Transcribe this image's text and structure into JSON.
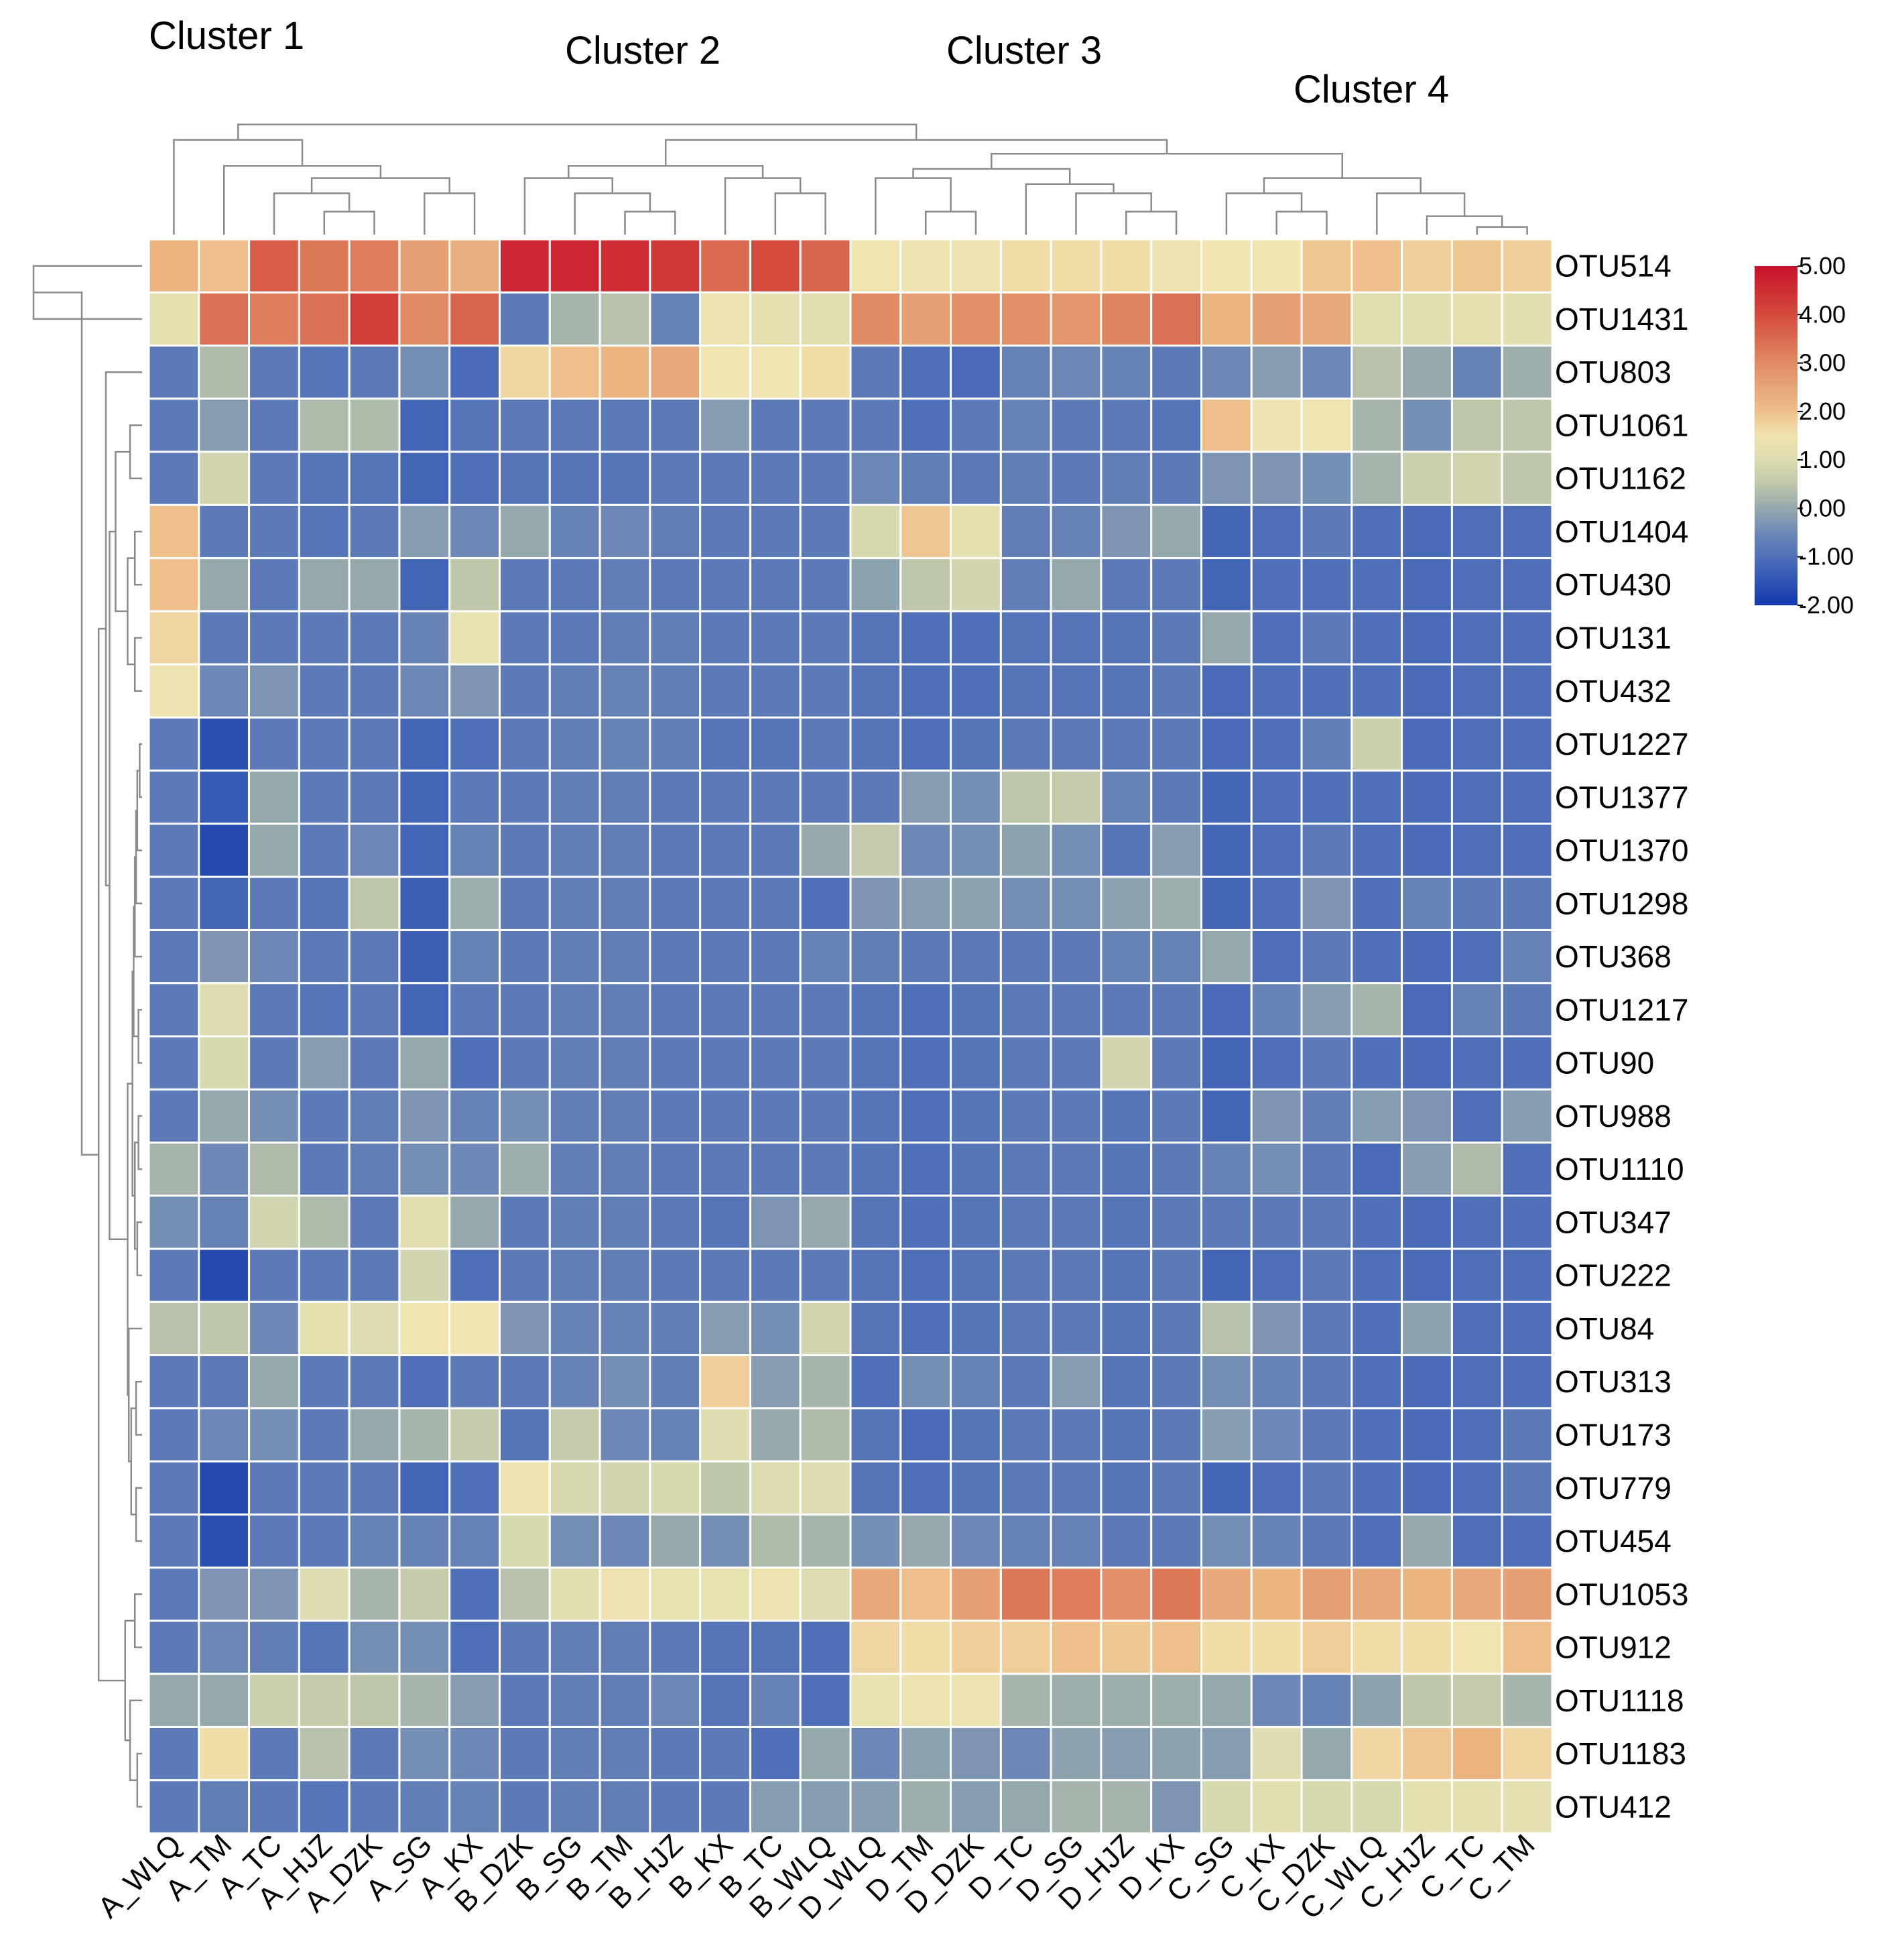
{
  "chart_data": {
    "type": "heatmap",
    "columns": [
      "A_WLQ",
      "A_TM",
      "A_TC",
      "A_HJZ",
      "A_DZK",
      "A_SG",
      "A_KX",
      "B_DZK",
      "B_SG",
      "B_TM",
      "B_HJZ",
      "B_KX",
      "B_TC",
      "B_WLQ",
      "D_WLQ",
      "D_TM",
      "D_DZK",
      "D_TC",
      "D_SG",
      "D_HJZ",
      "D_KX",
      "C_SG",
      "C_KX",
      "C_DZK",
      "C_WLQ",
      "C_HJZ",
      "C_TC",
      "C_TM"
    ],
    "rows": [
      "OTU514",
      "OTU1431",
      "OTU803",
      "OTU1061",
      "OTU1162",
      "OTU1404",
      "OTU430",
      "OTU131",
      "OTU432",
      "OTU1227",
      "OTU1377",
      "OTU1370",
      "OTU1298",
      "OTU368",
      "OTU1217",
      "OTU90",
      "OTU988",
      "OTU1110",
      "OTU347",
      "OTU222",
      "OTU84",
      "OTU313",
      "OTU173",
      "OTU779",
      "OTU454",
      "OTU1053",
      "OTU912",
      "OTU1118",
      "OTU1183",
      "OTU412"
    ],
    "values": [
      [
        2.2,
        2.0,
        3.7,
        3.3,
        3.2,
        2.6,
        2.3,
        4.6,
        4.6,
        4.5,
        4.3,
        3.5,
        4.0,
        3.6,
        1.5,
        1.4,
        1.4,
        1.6,
        1.6,
        1.6,
        1.4,
        1.5,
        1.5,
        1.9,
        2.0,
        1.8,
        1.9,
        1.8
      ],
      [
        1.2,
        3.4,
        3.2,
        3.4,
        4.2,
        3.0,
        3.6,
        -0.8,
        0.2,
        0.4,
        -0.6,
        1.4,
        1.2,
        1.1,
        3.0,
        2.6,
        2.9,
        2.9,
        2.8,
        3.1,
        3.4,
        2.2,
        2.6,
        2.4,
        1.1,
        1.1,
        1.2,
        1.1
      ],
      [
        -0.8,
        0.3,
        -0.8,
        -0.9,
        -0.8,
        -0.4,
        -1.1,
        1.7,
        2.0,
        2.2,
        2.4,
        1.5,
        1.5,
        1.6,
        -0.8,
        -1.0,
        -1.1,
        -0.6,
        -0.5,
        -0.6,
        -0.8,
        -0.5,
        -0.2,
        -0.5,
        0.4,
        0.0,
        -0.6,
        0.1
      ],
      [
        -0.8,
        -0.2,
        -0.8,
        0.3,
        0.3,
        -1.2,
        -0.9,
        -0.8,
        -0.8,
        -0.8,
        -0.8,
        -0.2,
        -0.8,
        -0.8,
        -0.8,
        -1.0,
        -0.8,
        -0.6,
        -0.8,
        -0.8,
        -0.9,
        2.0,
        1.4,
        1.5,
        0.2,
        -0.4,
        0.5,
        0.5
      ],
      [
        -0.8,
        0.8,
        -0.8,
        -0.9,
        -0.9,
        -1.2,
        -1.0,
        -0.9,
        -0.9,
        -0.9,
        -0.8,
        -0.8,
        -0.8,
        -0.8,
        -0.5,
        -0.7,
        -0.8,
        -0.7,
        -0.8,
        -0.7,
        -0.8,
        -0.3,
        -0.3,
        -0.4,
        0.2,
        0.7,
        0.8,
        0.5
      ],
      [
        2.0,
        -0.8,
        -0.8,
        -0.9,
        -0.8,
        -0.2,
        -0.5,
        0.0,
        -0.6,
        -0.5,
        -0.7,
        -0.8,
        -0.8,
        -0.8,
        0.9,
        1.9,
        1.2,
        -0.7,
        -0.6,
        -0.3,
        0.0,
        -1.2,
        -1.0,
        -0.8,
        -1.0,
        -1.1,
        -1.0,
        -1.0
      ],
      [
        2.0,
        0.0,
        -0.8,
        0.0,
        0.0,
        -1.2,
        0.5,
        -0.8,
        -0.8,
        -0.7,
        -0.8,
        -0.8,
        -0.8,
        -0.8,
        -0.1,
        0.5,
        0.8,
        -0.7,
        0.0,
        -0.8,
        -0.8,
        -1.2,
        -1.0,
        -1.0,
        -1.0,
        -1.1,
        -1.0,
        -1.0
      ],
      [
        1.7,
        -0.8,
        -0.8,
        -0.8,
        -0.8,
        -0.6,
        1.3,
        -0.8,
        -0.8,
        -0.7,
        -0.7,
        -0.8,
        -0.8,
        -0.8,
        -0.9,
        -1.0,
        -1.0,
        -0.9,
        -0.9,
        -0.9,
        -0.8,
        0.0,
        -1.0,
        -0.8,
        -1.0,
        -1.1,
        -1.0,
        -1.0
      ],
      [
        1.4,
        -0.5,
        -0.3,
        -0.8,
        -0.8,
        -0.5,
        -0.3,
        -0.8,
        -0.7,
        -0.6,
        -0.7,
        -0.8,
        -0.8,
        -0.8,
        -0.9,
        -1.0,
        -1.0,
        -0.9,
        -0.9,
        -0.9,
        -0.8,
        -1.1,
        -1.0,
        -1.0,
        -1.0,
        -1.1,
        -1.0,
        -1.0
      ],
      [
        -0.8,
        -1.6,
        -0.8,
        -0.8,
        -0.8,
        -1.2,
        -1.0,
        -0.8,
        -0.7,
        -0.6,
        -0.7,
        -0.9,
        -0.9,
        -0.8,
        -0.9,
        -1.0,
        -0.9,
        -0.8,
        -0.8,
        -0.8,
        -0.8,
        -1.1,
        -1.0,
        -0.7,
        0.7,
        -1.1,
        -1.0,
        -1.0
      ],
      [
        -0.8,
        -1.4,
        0.0,
        -0.8,
        -0.8,
        -1.2,
        -0.8,
        -0.8,
        -0.7,
        -0.7,
        -0.8,
        -0.8,
        -0.8,
        -0.8,
        -0.8,
        -0.2,
        -0.4,
        0.5,
        0.6,
        -0.6,
        -0.8,
        -1.2,
        -1.0,
        -1.0,
        -1.0,
        -1.1,
        -1.0,
        -1.0
      ],
      [
        -0.8,
        -1.7,
        0.0,
        -0.8,
        -0.5,
        -1.2,
        -0.6,
        -0.8,
        -0.7,
        -0.7,
        -0.8,
        -0.8,
        -0.8,
        0.0,
        0.6,
        -0.5,
        -0.4,
        -0.1,
        -0.4,
        -0.9,
        -0.2,
        -1.2,
        -1.0,
        -0.8,
        -1.0,
        -1.1,
        -1.0,
        -1.0
      ],
      [
        -0.8,
        -1.2,
        -0.8,
        -0.9,
        0.5,
        -1.3,
        0.1,
        -0.8,
        -0.7,
        -0.7,
        -0.8,
        -0.8,
        -0.8,
        -1.0,
        -0.3,
        -0.2,
        -0.1,
        -0.4,
        -0.4,
        -0.1,
        0.1,
        -1.2,
        -1.0,
        -0.3,
        -1.0,
        -0.6,
        -0.8,
        -0.8
      ],
      [
        -0.8,
        -0.3,
        -0.5,
        -0.8,
        -0.8,
        -1.3,
        -0.6,
        -0.8,
        -0.7,
        -0.7,
        -0.8,
        -0.8,
        -0.8,
        -0.6,
        -0.7,
        -0.8,
        -0.8,
        -0.8,
        -0.8,
        -0.6,
        -0.6,
        0.0,
        -1.0,
        -0.8,
        -1.0,
        -1.1,
        -1.0,
        -0.6
      ],
      [
        -0.8,
        1.0,
        -0.8,
        -0.9,
        -0.8,
        -1.2,
        -0.8,
        -0.8,
        -0.7,
        -0.7,
        -0.8,
        -0.8,
        -0.8,
        -0.8,
        -0.9,
        -1.0,
        -0.9,
        -0.8,
        -0.8,
        -0.8,
        -0.8,
        -1.1,
        -0.6,
        -0.2,
        0.2,
        -1.1,
        -0.6,
        -0.8
      ],
      [
        -0.8,
        0.9,
        -0.8,
        -0.2,
        -0.8,
        0.0,
        -1.0,
        -0.8,
        -0.7,
        -0.7,
        -0.8,
        -0.8,
        -0.8,
        -0.8,
        -0.9,
        -1.0,
        -0.9,
        -0.8,
        -0.8,
        0.8,
        -0.8,
        -1.2,
        -1.0,
        -0.8,
        -1.0,
        -1.1,
        -1.0,
        -1.0
      ],
      [
        -0.8,
        0.0,
        -0.4,
        -0.8,
        -0.7,
        -0.3,
        -0.6,
        -0.4,
        -0.7,
        -0.7,
        -0.8,
        -0.8,
        -0.8,
        -0.8,
        -0.9,
        -1.0,
        -0.9,
        -0.8,
        -0.8,
        -0.9,
        -0.8,
        -1.2,
        -0.3,
        -0.7,
        -0.2,
        -0.3,
        -1.0,
        -0.2
      ],
      [
        0.2,
        -0.5,
        0.3,
        -0.8,
        -0.7,
        -0.4,
        -0.5,
        0.1,
        -0.7,
        -0.7,
        -0.8,
        -0.8,
        -0.8,
        -0.8,
        -0.9,
        -1.0,
        -0.9,
        -0.8,
        -0.8,
        -0.9,
        -0.8,
        -0.6,
        -0.4,
        -0.8,
        -1.1,
        -0.2,
        0.3,
        -1.0
      ],
      [
        -0.4,
        -0.6,
        0.8,
        0.3,
        -0.8,
        1.1,
        0.0,
        -0.8,
        -0.7,
        -0.7,
        -0.8,
        -0.9,
        -0.3,
        0.0,
        -0.9,
        -1.0,
        -0.9,
        -0.8,
        -0.8,
        -0.9,
        -0.8,
        -0.8,
        -0.8,
        -0.8,
        -1.0,
        -1.1,
        -1.0,
        -1.0
      ],
      [
        -0.8,
        -1.7,
        -0.8,
        -0.8,
        -0.8,
        0.8,
        -1.0,
        -0.8,
        -0.7,
        -0.7,
        -0.8,
        -0.8,
        -0.8,
        -0.8,
        -0.9,
        -1.0,
        -0.9,
        -0.8,
        -0.8,
        -0.9,
        -0.8,
        -1.2,
        -1.0,
        -0.8,
        -1.0,
        -1.1,
        -1.0,
        -1.0
      ],
      [
        0.4,
        0.5,
        -0.5,
        1.2,
        1.0,
        1.5,
        1.5,
        -0.3,
        -0.6,
        -0.6,
        -0.7,
        -0.2,
        -0.4,
        0.8,
        -0.9,
        -1.0,
        -0.9,
        -0.8,
        -0.8,
        -0.9,
        -0.8,
        0.4,
        -0.3,
        -0.8,
        -1.0,
        -0.1,
        -1.0,
        -1.0
      ],
      [
        -0.8,
        -0.8,
        0.0,
        -0.8,
        -0.8,
        -1.0,
        -0.8,
        -0.8,
        -0.6,
        -0.4,
        -0.7,
        1.8,
        -0.2,
        0.2,
        -1.0,
        -0.4,
        -0.6,
        -0.8,
        -0.2,
        -0.9,
        -0.8,
        -0.4,
        -0.6,
        -0.8,
        -1.0,
        -1.1,
        -1.0,
        -1.0
      ],
      [
        -0.8,
        -0.5,
        -0.4,
        -0.8,
        0.0,
        0.2,
        0.6,
        -0.9,
        0.6,
        -0.5,
        -0.6,
        1.0,
        0.0,
        0.3,
        -0.9,
        -1.1,
        -0.9,
        -0.8,
        -0.8,
        -0.9,
        -0.8,
        -0.2,
        -0.5,
        -0.8,
        -1.0,
        -1.1,
        -1.0,
        -0.8
      ],
      [
        -0.8,
        -1.7,
        -0.8,
        -0.8,
        -0.8,
        -1.2,
        -1.0,
        1.4,
        0.9,
        0.8,
        0.9,
        0.5,
        1.0,
        1.0,
        -0.9,
        -1.0,
        -0.9,
        -0.8,
        -0.8,
        -0.9,
        -0.8,
        -1.2,
        -1.0,
        -0.8,
        -1.0,
        -1.1,
        -1.0,
        -0.8
      ],
      [
        -0.8,
        -1.6,
        -0.8,
        -0.8,
        -0.6,
        -0.6,
        -0.6,
        0.9,
        -0.4,
        -0.5,
        0.0,
        -0.4,
        0.3,
        0.2,
        -0.4,
        0.0,
        -0.5,
        -0.6,
        -0.6,
        -0.8,
        -0.8,
        -0.4,
        -0.6,
        -0.8,
        -1.0,
        0.0,
        -1.0,
        -1.0
      ],
      [
        -0.8,
        -0.3,
        -0.3,
        1.0,
        0.2,
        0.6,
        -1.0,
        0.4,
        1.1,
        1.4,
        1.3,
        1.3,
        1.4,
        1.0,
        2.4,
        2.0,
        2.6,
        3.3,
        3.2,
        2.9,
        3.3,
        2.4,
        2.2,
        2.6,
        2.4,
        2.2,
        2.4,
        2.6
      ],
      [
        -0.8,
        -0.5,
        -0.7,
        -0.9,
        -0.4,
        -0.4,
        -1.0,
        -0.8,
        -0.7,
        -0.7,
        -0.8,
        -0.9,
        -0.9,
        -1.0,
        1.7,
        1.6,
        1.8,
        1.8,
        2.0,
        1.9,
        2.0,
        1.6,
        1.6,
        1.8,
        1.6,
        1.6,
        1.5,
        2.0
      ],
      [
        0.0,
        0.0,
        0.7,
        0.6,
        0.5,
        0.2,
        -0.2,
        -0.8,
        -0.7,
        -0.7,
        -0.5,
        -0.9,
        -0.6,
        -1.0,
        1.3,
        1.4,
        1.4,
        0.2,
        0.1,
        0.1,
        0.1,
        0.0,
        -0.5,
        -0.6,
        -0.1,
        0.5,
        0.6,
        0.2
      ],
      [
        -0.8,
        1.6,
        -0.8,
        0.4,
        -0.8,
        -0.4,
        -0.5,
        -0.8,
        -0.7,
        -0.7,
        -0.8,
        -0.8,
        -1.0,
        0.0,
        -0.5,
        -0.1,
        -0.3,
        -0.5,
        -0.1,
        -0.2,
        -0.1,
        -0.2,
        1.0,
        0.0,
        1.7,
        1.9,
        2.2,
        1.7
      ],
      [
        -0.8,
        -0.7,
        -0.8,
        -0.9,
        -0.8,
        -0.7,
        -0.6,
        -0.8,
        -0.7,
        -0.7,
        -0.8,
        -0.8,
        -0.2,
        -0.2,
        -0.2,
        0.1,
        -0.2,
        0.0,
        0.2,
        0.2,
        -0.3,
        0.9,
        1.1,
        0.9,
        0.9,
        1.2,
        1.2,
        1.2
      ]
    ],
    "cluster_labels": [
      "Cluster 1",
      "Cluster 2",
      "Cluster 3",
      "Cluster 4"
    ],
    "colorbar": {
      "range": [
        -2,
        5
      ],
      "ticks": [
        "5.00",
        "4.00",
        "3.00",
        "2.00",
        "1.00",
        "0.00",
        "-1.00",
        "-2.00"
      ],
      "tick_values": [
        5,
        4,
        3,
        2,
        1,
        0,
        -1,
        -2
      ],
      "stops": [
        {
          "v": -2.0,
          "c": "#1239ad"
        },
        {
          "v": -1.0,
          "c": "#4f70b8"
        },
        {
          "v": -0.5,
          "c": "#6d88b6"
        },
        {
          "v": 0.0,
          "c": "#95a9ad"
        },
        {
          "v": 0.5,
          "c": "#bfc7aa"
        },
        {
          "v": 1.0,
          "c": "#ddddb0"
        },
        {
          "v": 1.5,
          "c": "#f0e4b0"
        },
        {
          "v": 2.0,
          "c": "#eebf8a"
        },
        {
          "v": 3.0,
          "c": "#e08b64"
        },
        {
          "v": 4.0,
          "c": "#d44a3c"
        },
        {
          "v": 5.0,
          "c": "#c8102a"
        }
      ]
    },
    "col_dendrogram": {
      "leaves": [
        "A_WLQ",
        "A_TM",
        "A_TC",
        "A_HJZ",
        "A_DZK",
        "A_SG",
        "A_KX",
        "B_DZK",
        "B_SG",
        "B_TM",
        "B_HJZ",
        "B_KX",
        "B_TC",
        "B_WLQ",
        "D_WLQ",
        "D_TM",
        "D_DZK",
        "D_TC",
        "D_SG",
        "D_HJZ",
        "D_KX",
        "C_SG",
        "C_KX",
        "C_DZK",
        "C_WLQ",
        "C_HJZ",
        "C_TC",
        "C_TM"
      ],
      "merges": [
        [
          3,
          4,
          0.15
        ],
        [
          2,
          28,
          0.27
        ],
        [
          5,
          6,
          0.27
        ],
        [
          29,
          30,
          0.37
        ],
        [
          1,
          31,
          0.45
        ],
        [
          0,
          32,
          0.62
        ],
        [
          9,
          10,
          0.15
        ],
        [
          8,
          34,
          0.27
        ],
        [
          12,
          13,
          0.27
        ],
        [
          7,
          35,
          0.37
        ],
        [
          11,
          36,
          0.37
        ],
        [
          37,
          38,
          0.45
        ],
        [
          15,
          16,
          0.15
        ],
        [
          19,
          20,
          0.15
        ],
        [
          18,
          41,
          0.27
        ],
        [
          17,
          42,
          0.33
        ],
        [
          14,
          40,
          0.37
        ],
        [
          43,
          44,
          0.43
        ],
        [
          26,
          27,
          0.05
        ],
        [
          25,
          46,
          0.12
        ],
        [
          22,
          23,
          0.15
        ],
        [
          21,
          48,
          0.27
        ],
        [
          24,
          47,
          0.27
        ],
        [
          49,
          50,
          0.37
        ],
        [
          45,
          51,
          0.53
        ],
        [
          39,
          52,
          0.62
        ],
        [
          33,
          53,
          0.72
        ]
      ]
    },
    "row_dendrogram": {
      "merges": [
        [
          0,
          1,
          0.9
        ],
        [
          5,
          6,
          0.06
        ],
        [
          7,
          8,
          0.06
        ],
        [
          31,
          32,
          0.12
        ],
        [
          3,
          4,
          0.1
        ],
        [
          34,
          33,
          0.22
        ],
        [
          9,
          10,
          0.02
        ],
        [
          11,
          36,
          0.04
        ],
        [
          12,
          37,
          0.05
        ],
        [
          13,
          38,
          0.06
        ],
        [
          14,
          15,
          0.03
        ],
        [
          39,
          40,
          0.07
        ],
        [
          16,
          17,
          0.03
        ],
        [
          18,
          19,
          0.04
        ],
        [
          42,
          43,
          0.06
        ],
        [
          41,
          44,
          0.08
        ],
        [
          21,
          22,
          0.05
        ],
        [
          23,
          24,
          0.05
        ],
        [
          46,
          47,
          0.09
        ],
        [
          20,
          48,
          0.11
        ],
        [
          45,
          49,
          0.12
        ],
        [
          35,
          50,
          0.27
        ],
        [
          2,
          51,
          0.3
        ],
        [
          25,
          26,
          0.06
        ],
        [
          28,
          29,
          0.04
        ],
        [
          27,
          54,
          0.1
        ],
        [
          53,
          55,
          0.14
        ],
        [
          52,
          56,
          0.36
        ],
        [
          30,
          57,
          0.5
        ]
      ]
    }
  }
}
